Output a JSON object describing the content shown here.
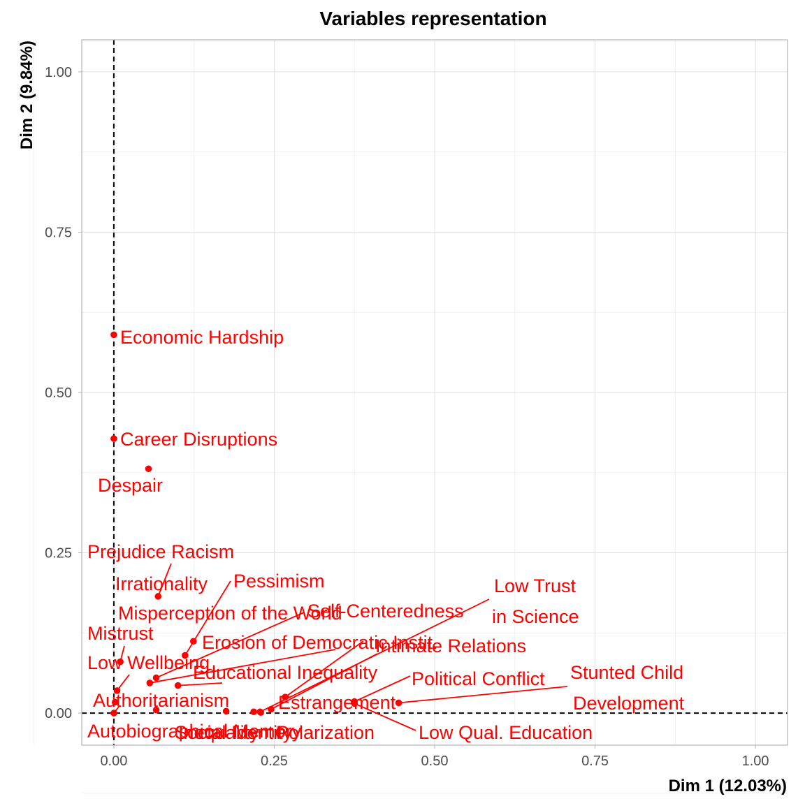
{
  "chart_data": {
    "type": "scatter",
    "title": "Variables representation",
    "xlabel": "Dim 1 (12.03%)",
    "ylabel": "Dim 2 (9.84%)",
    "xlim": [
      -0.05,
      1.05
    ],
    "ylim": [
      -0.05,
      1.05
    ],
    "x_ticks": [
      "0.00",
      "0.25",
      "0.50",
      "0.75",
      "1.00"
    ],
    "y_ticks": [
      "0.00",
      "0.25",
      "0.50",
      "0.75",
      "1.00"
    ],
    "grid": true,
    "reference_lines": {
      "x": 0,
      "y": 0,
      "style": "dashed"
    },
    "color": "#ff0000",
    "points": [
      {
        "label": "Economic Hardship",
        "x": 0.0,
        "y": 0.59
      },
      {
        "label": "Career Disruptions",
        "x": 0.0,
        "y": 0.428
      },
      {
        "label": "Despair",
        "x": 0.054,
        "y": 0.381
      },
      {
        "label": "Prejudice Racism",
        "x": 0.069,
        "y": 0.182
      },
      {
        "label": "Irrationality",
        "x": 0.124,
        "y": 0.112
      },
      {
        "label": "Pessimism",
        "x": 0.111,
        "y": 0.09
      },
      {
        "label": "Misperception of the World",
        "x": 0.066,
        "y": 0.055
      },
      {
        "label": "Mistrust",
        "x": 0.01,
        "y": 0.08
      },
      {
        "label": "Low Wellbeing",
        "x": 0.005,
        "y": 0.035
      },
      {
        "label": "Self-Centeredness",
        "x": 0.267,
        "y": 0.025
      },
      {
        "label": "Erosion of Democratic Instit.",
        "x": 0.056,
        "y": 0.047
      },
      {
        "label": "Intimate Relations",
        "x": 0.245,
        "y": 0.006
      },
      {
        "label": "Low Trust\nin Science",
        "x": 0.228,
        "y": 0.002
      },
      {
        "label": "Educational Inequality",
        "x": 0.1,
        "y": 0.043
      },
      {
        "label": "Political Conflict",
        "x": 0.375,
        "y": 0.018
      },
      {
        "label": "Stunted Child\nDevelopment",
        "x": 0.444,
        "y": 0.016
      },
      {
        "label": "Authoritarianism",
        "x": 0.002,
        "y": 0.017
      },
      {
        "label": "Estrangement",
        "x": 0.175,
        "y": 0.003
      },
      {
        "label": "Autobiographical Memory",
        "x": 0.0,
        "y": 0.0
      },
      {
        "label": "Social Identity",
        "x": 0.066,
        "y": 0.005
      },
      {
        "label": "Inequality",
        "x": 0.218,
        "y": 0.002
      },
      {
        "label": "Polarization",
        "x": 0.229,
        "y": 0.001
      },
      {
        "label": "Low Qual. Education",
        "x": 0.375,
        "y": 0.015
      }
    ]
  }
}
